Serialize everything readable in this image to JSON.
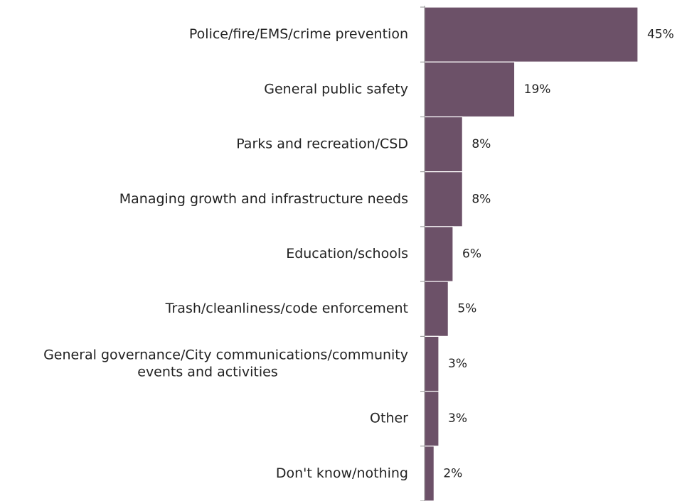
{
  "chart_data": {
    "type": "bar",
    "orientation": "horizontal",
    "categories": [
      [
        "Police/fire/EMS/crime prevention"
      ],
      [
        "General public safety"
      ],
      [
        "Parks and recreation/CSD"
      ],
      [
        "Managing growth and infrastructure needs"
      ],
      [
        "Education/schools"
      ],
      [
        "Trash/cleanliness/code enforcement"
      ],
      [
        "General governance/City communications/community",
        "events and activities"
      ],
      [
        "Other"
      ],
      [
        "Don't know/nothing"
      ]
    ],
    "values": [
      45,
      19,
      8,
      8,
      6,
      5,
      3,
      3,
      2
    ],
    "value_labels": [
      "45%",
      "19%",
      "8%",
      "8%",
      "6%",
      "5%",
      "3%",
      "3%",
      "2%"
    ],
    "unit": "%",
    "xlim": [
      0,
      45
    ],
    "grid": false,
    "legend": "none",
    "title": "",
    "xlabel": "",
    "ylabel": "",
    "colors": {
      "bar": "#6c5168",
      "axis": "#8f8f8f",
      "text": "#222222"
    }
  }
}
